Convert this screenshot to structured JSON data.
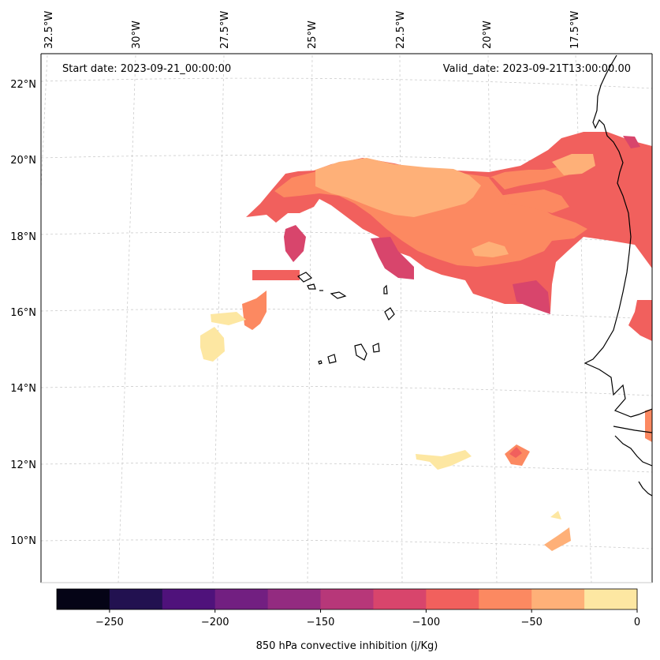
{
  "map": {
    "start_label": "Start date: 2023-09-21_00:00:00",
    "valid_label": "Valid_date: 2023-09-21T13:00:00.00",
    "longitude_labels": [
      "32.5°W",
      "30°W",
      "27.5°W",
      "25°W",
      "22.5°W",
      "20°W",
      "17.5°W"
    ],
    "latitude_labels": [
      "22°N",
      "20°N",
      "18°N",
      "16°N",
      "14°N",
      "12°N",
      "10°N"
    ],
    "coastline_color": "#000000",
    "gridline_color": "#cccccc"
  },
  "colorbar": {
    "title": "850 hPa convective inhibition (j/Kg)",
    "tick_labels": [
      "−250",
      "−200",
      "−150",
      "−100",
      "−50",
      "0"
    ],
    "levels": [
      -275,
      -250,
      -225,
      -200,
      -175,
      -150,
      -125,
      -100,
      -75,
      -50,
      -25,
      0
    ],
    "colors": [
      "#050416",
      "#221150",
      "#4f127b",
      "#721f81",
      "#932b80",
      "#b73779",
      "#d8456c",
      "#f1605d",
      "#fc8961",
      "#feb078",
      "#fde7a2"
    ]
  }
}
